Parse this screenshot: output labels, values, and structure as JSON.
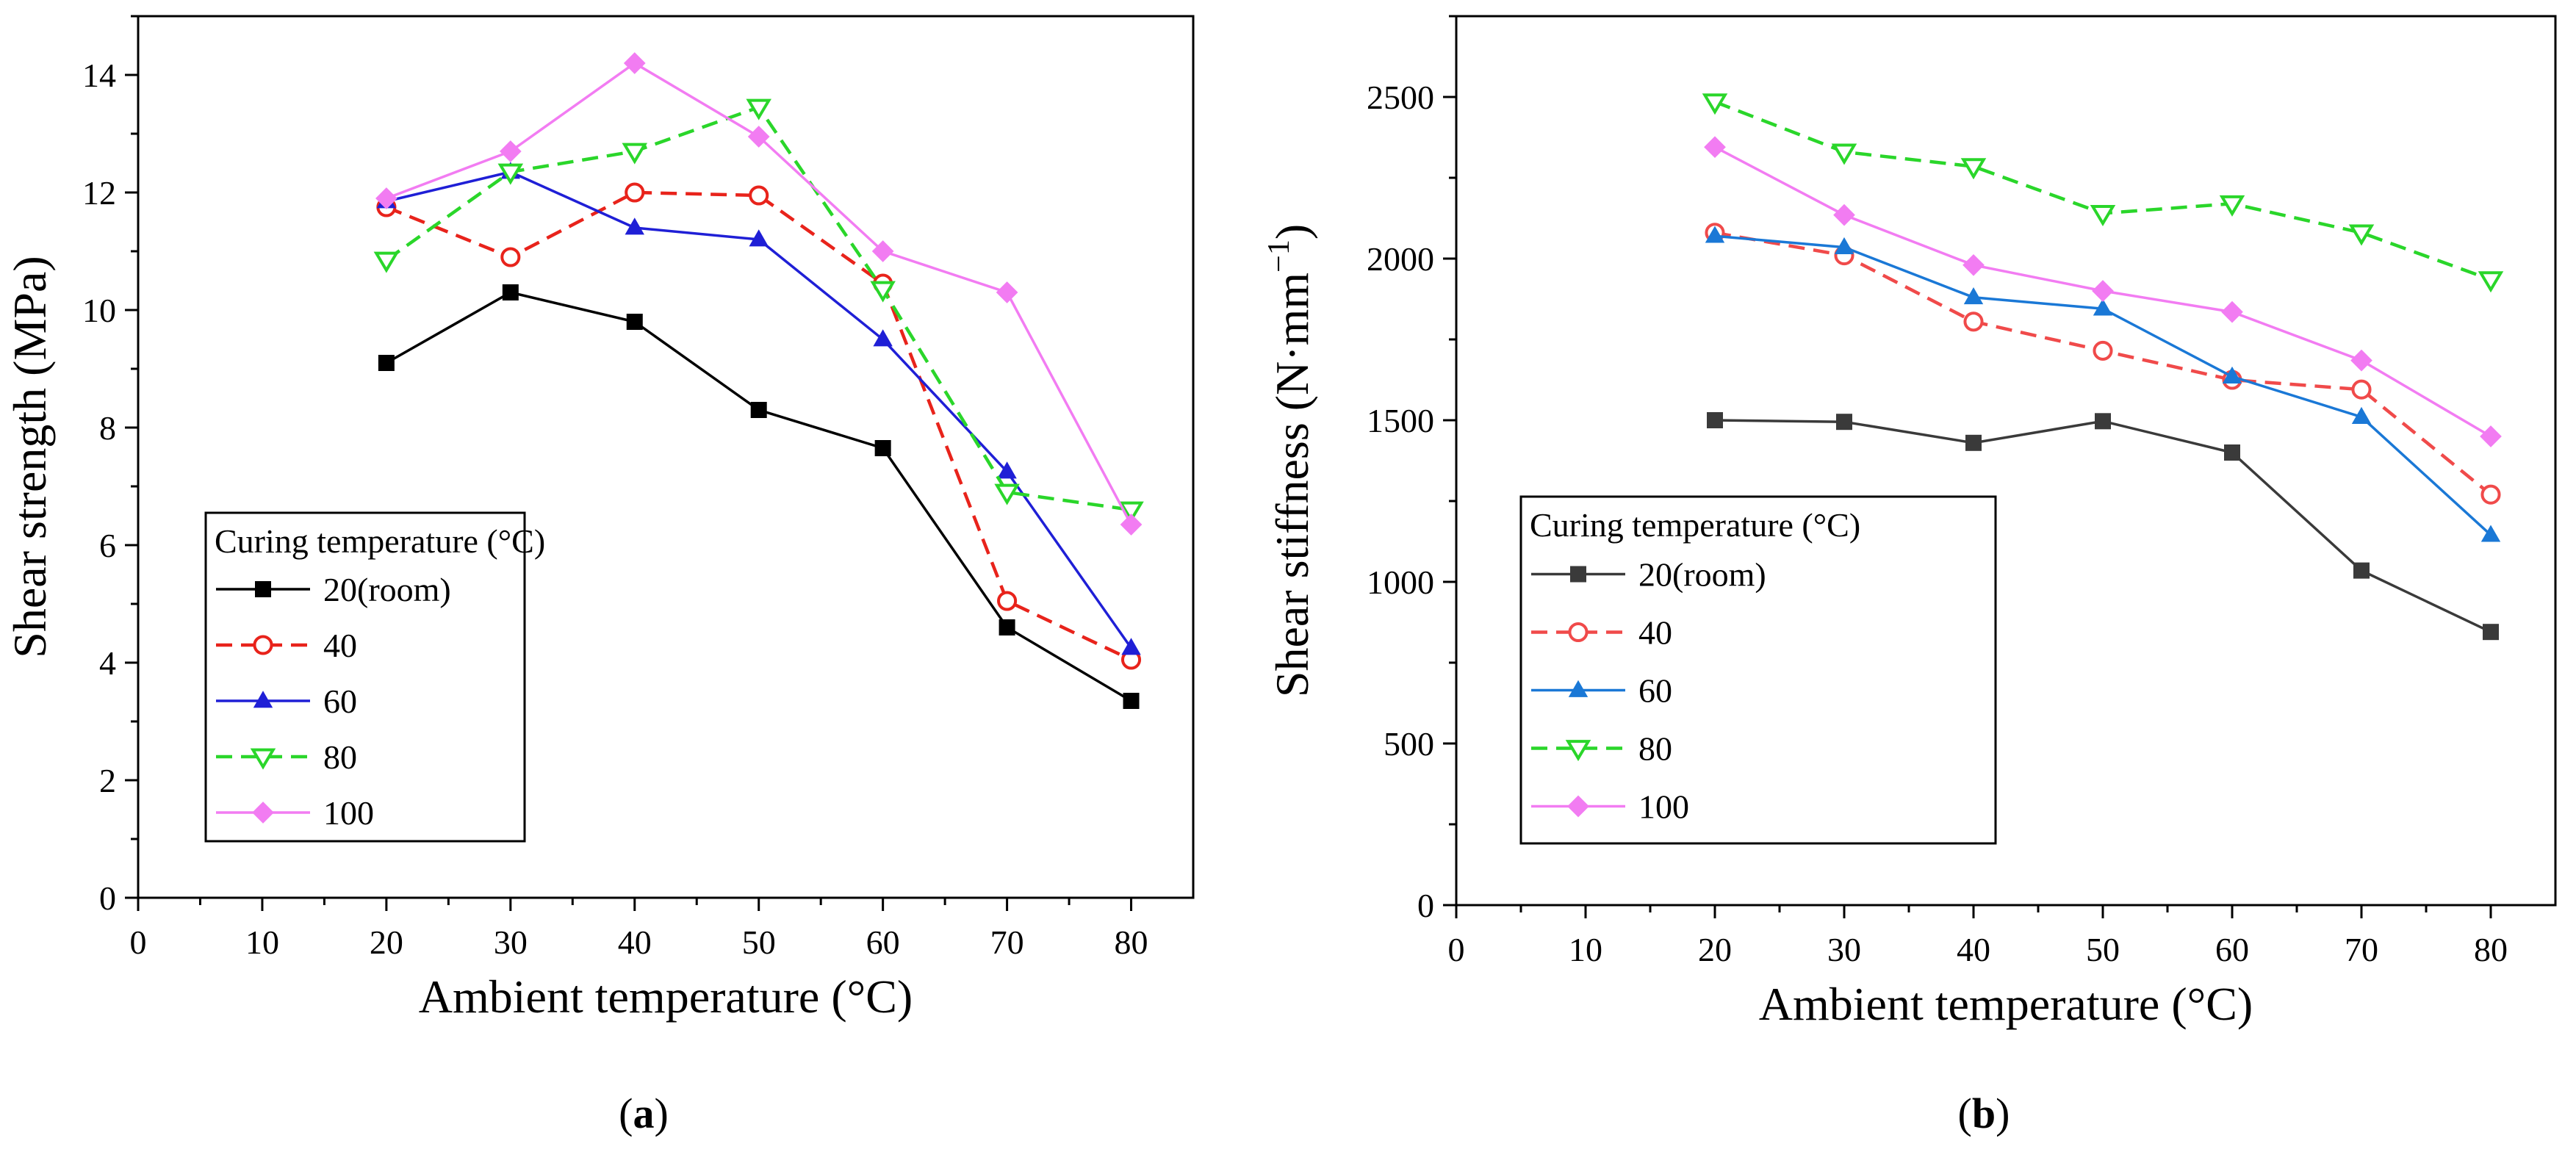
{
  "chart_data": [
    {
      "type": "line",
      "panel_label": "a",
      "xlabel": "Ambient temperature (°C)",
      "ylabel": "Shear strength (MPa)",
      "xlim": [
        0,
        85
      ],
      "ylim": [
        0,
        15
      ],
      "xticks": [
        0,
        10,
        20,
        30,
        40,
        50,
        60,
        70,
        80
      ],
      "yticks": [
        0,
        2,
        4,
        6,
        8,
        10,
        12,
        14
      ],
      "legend_title": "Curing temperature (°C)",
      "legend_position": "lower-left",
      "x": [
        20,
        30,
        40,
        50,
        60,
        70,
        80
      ],
      "series": [
        {
          "name": "20(room)",
          "color": "#000000",
          "dash": "solid",
          "marker": "square-filled",
          "values": [
            9.1,
            10.3,
            9.8,
            8.3,
            7.65,
            4.6,
            3.35
          ]
        },
        {
          "name": "40",
          "color": "#e8231b",
          "dash": "dashed",
          "marker": "circle-open",
          "values": [
            11.75,
            10.9,
            12.0,
            11.95,
            10.45,
            5.05,
            4.05
          ]
        },
        {
          "name": "60",
          "color": "#1f1fd6",
          "dash": "solid",
          "marker": "triangle-up-filled",
          "values": [
            11.85,
            12.35,
            11.4,
            11.2,
            9.5,
            7.25,
            4.25
          ]
        },
        {
          "name": "80",
          "color": "#2ad62a",
          "dash": "dashed",
          "marker": "triangle-down-open",
          "values": [
            10.85,
            12.35,
            12.7,
            13.45,
            10.35,
            6.9,
            6.6
          ]
        },
        {
          "name": "100",
          "color": "#f27cf2",
          "dash": "solid",
          "marker": "diamond-filled",
          "values": [
            11.9,
            12.7,
            14.2,
            12.95,
            11.0,
            10.3,
            6.35
          ]
        }
      ]
    },
    {
      "type": "line",
      "panel_label": "b",
      "xlabel": "Ambient temperature (°C)",
      "ylabel": "Shear stiffness (N·mm",
      "ylabel_exponent": "−1",
      "ylabel_close": ")",
      "xlim": [
        0,
        85
      ],
      "ylim": [
        0,
        2750
      ],
      "xticks": [
        0,
        10,
        20,
        30,
        40,
        50,
        60,
        70,
        80
      ],
      "yticks": [
        0,
        500,
        1000,
        1500,
        2000,
        2500
      ],
      "legend_title": "Curing temperature  (°C)",
      "legend_position": "lower-left",
      "x": [
        20,
        30,
        40,
        50,
        60,
        70,
        80
      ],
      "series": [
        {
          "name": "20(room)",
          "color": "#3a3a3a",
          "dash": "solid",
          "marker": "square-filled",
          "values": [
            1500,
            1495,
            1430,
            1497,
            1400,
            1035,
            845
          ]
        },
        {
          "name": "40",
          "color": "#f04a4a",
          "dash": "dashed",
          "marker": "circle-open",
          "values": [
            2080,
            2010,
            1805,
            1715,
            1625,
            1595,
            1270
          ]
        },
        {
          "name": "60",
          "color": "#1a78d6",
          "dash": "solid",
          "marker": "triangle-up-filled",
          "values": [
            2070,
            2035,
            1880,
            1845,
            1635,
            1510,
            1145
          ]
        },
        {
          "name": "80",
          "color": "#2ad62a",
          "dash": "dashed",
          "marker": "triangle-down-open",
          "values": [
            2485,
            2330,
            2285,
            2140,
            2170,
            2080,
            1935
          ]
        },
        {
          "name": "100",
          "color": "#f27cf2",
          "dash": "solid",
          "marker": "diamond-filled",
          "values": [
            2345,
            2135,
            1980,
            1900,
            1835,
            1685,
            1450
          ]
        }
      ]
    }
  ]
}
